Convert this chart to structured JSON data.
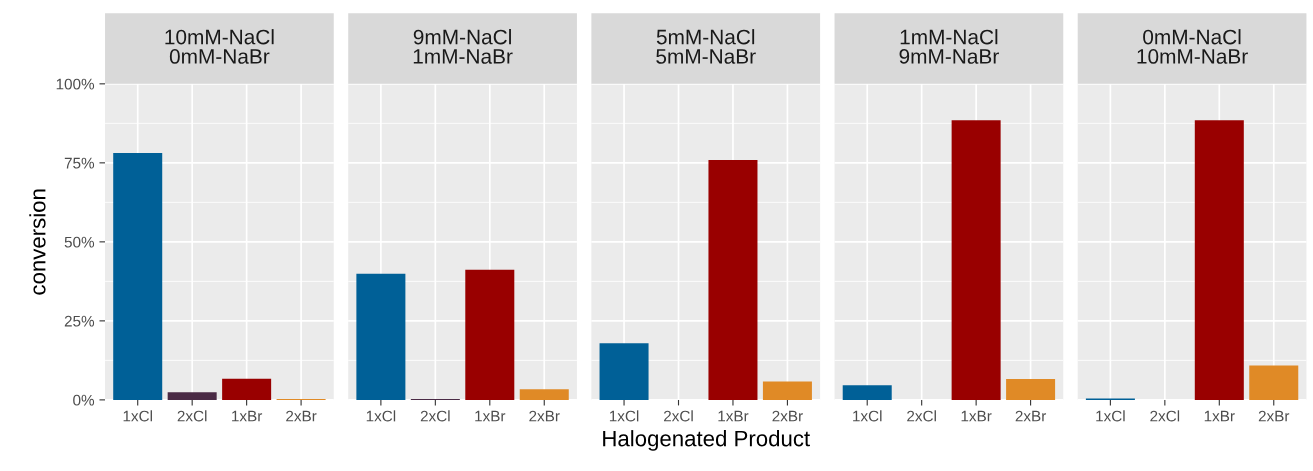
{
  "chart_data": [
    {
      "type": "bar",
      "title": "10mM-NaCl\n0mM-NaBr",
      "ylabel": "conversion",
      "categories": [
        "1xCl",
        "2xCl",
        "1xBr",
        "2xBr"
      ],
      "values": [
        78.1,
        2.4,
        6.7,
        0.3
      ],
      "colors": [
        "#006097",
        "#4a2a45",
        "#990000",
        "#e08a26"
      ],
      "ylim": [
        0,
        100
      ],
      "yticks": [
        {
          "value": 0,
          "label": "0%"
        },
        {
          "value": 25,
          "label": "25%"
        },
        {
          "value": 50,
          "label": "50%"
        },
        {
          "value": 75,
          "label": "75%"
        },
        {
          "value": 100,
          "label": "100%"
        }
      ],
      "grid": true,
      "legend": false
    },
    {
      "type": "bar",
      "title": "9mM-NaCl\n1mM-NaBr",
      "categories": [
        "1xCl",
        "2xCl",
        "1xBr",
        "2xBr"
      ],
      "values": [
        39.9,
        0.3,
        41.2,
        3.4
      ],
      "colors": [
        "#006097",
        "#4a2a45",
        "#990000",
        "#e08a26"
      ],
      "ylim": [
        0,
        100
      ],
      "yticks": [
        {
          "value": 0,
          "label": null
        },
        {
          "value": 25,
          "label": null
        },
        {
          "value": 50,
          "label": null
        },
        {
          "value": 75,
          "label": null
        },
        {
          "value": 100,
          "label": null
        }
      ],
      "tick_labels": "x",
      "grid": true,
      "legend": false
    },
    {
      "type": "bar",
      "title": "5mM-NaCl\n5mM-NaBr",
      "xlabel": "Halogenated Product",
      "categories": [
        "1xCl",
        "2xCl",
        "1xBr",
        "2xBr"
      ],
      "values": [
        17.9,
        0,
        75.9,
        5.8
      ],
      "colors": [
        "#006097",
        "#4a2a45",
        "#990000",
        "#e08a26"
      ],
      "ylim": [
        0,
        100
      ],
      "yticks": [
        {
          "value": 0,
          "label": null
        },
        {
          "value": 25,
          "label": null
        },
        {
          "value": 50,
          "label": null
        },
        {
          "value": 75,
          "label": null
        },
        {
          "value": 100,
          "label": null
        }
      ],
      "tick_labels": "x",
      "grid": true,
      "legend": false
    },
    {
      "type": "bar",
      "title": "1mM-NaCl\n9mM-NaBr",
      "categories": [
        "1xCl",
        "2xCl",
        "1xBr",
        "2xBr"
      ],
      "values": [
        4.6,
        0,
        88.5,
        6.6
      ],
      "colors": [
        "#006097",
        "#4a2a45",
        "#990000",
        "#e08a26"
      ],
      "ylim": [
        0,
        100
      ],
      "yticks": [
        {
          "value": 0,
          "label": null
        },
        {
          "value": 25,
          "label": null
        },
        {
          "value": 50,
          "label": null
        },
        {
          "value": 75,
          "label": null
        },
        {
          "value": 100,
          "label": null
        }
      ],
      "tick_labels": "x",
      "grid": true,
      "legend": false
    },
    {
      "type": "bar",
      "title": "0mM-NaCl\n10mM-NaBr",
      "categories": [
        "1xCl",
        "2xCl",
        "1xBr",
        "2xBr"
      ],
      "values": [
        0.4,
        0,
        88.5,
        10.9
      ],
      "colors": [
        "#006097",
        "#4a2a45",
        "#990000",
        "#e08a26"
      ],
      "ylim": [
        0,
        100
      ],
      "yticks": [
        {
          "value": 0,
          "label": null
        },
        {
          "value": 25,
          "label": null
        },
        {
          "value": 50,
          "label": null
        },
        {
          "value": 75,
          "label": null
        },
        {
          "value": 100,
          "label": null
        }
      ],
      "tick_labels": "x",
      "grid": true,
      "legend": false
    }
  ]
}
